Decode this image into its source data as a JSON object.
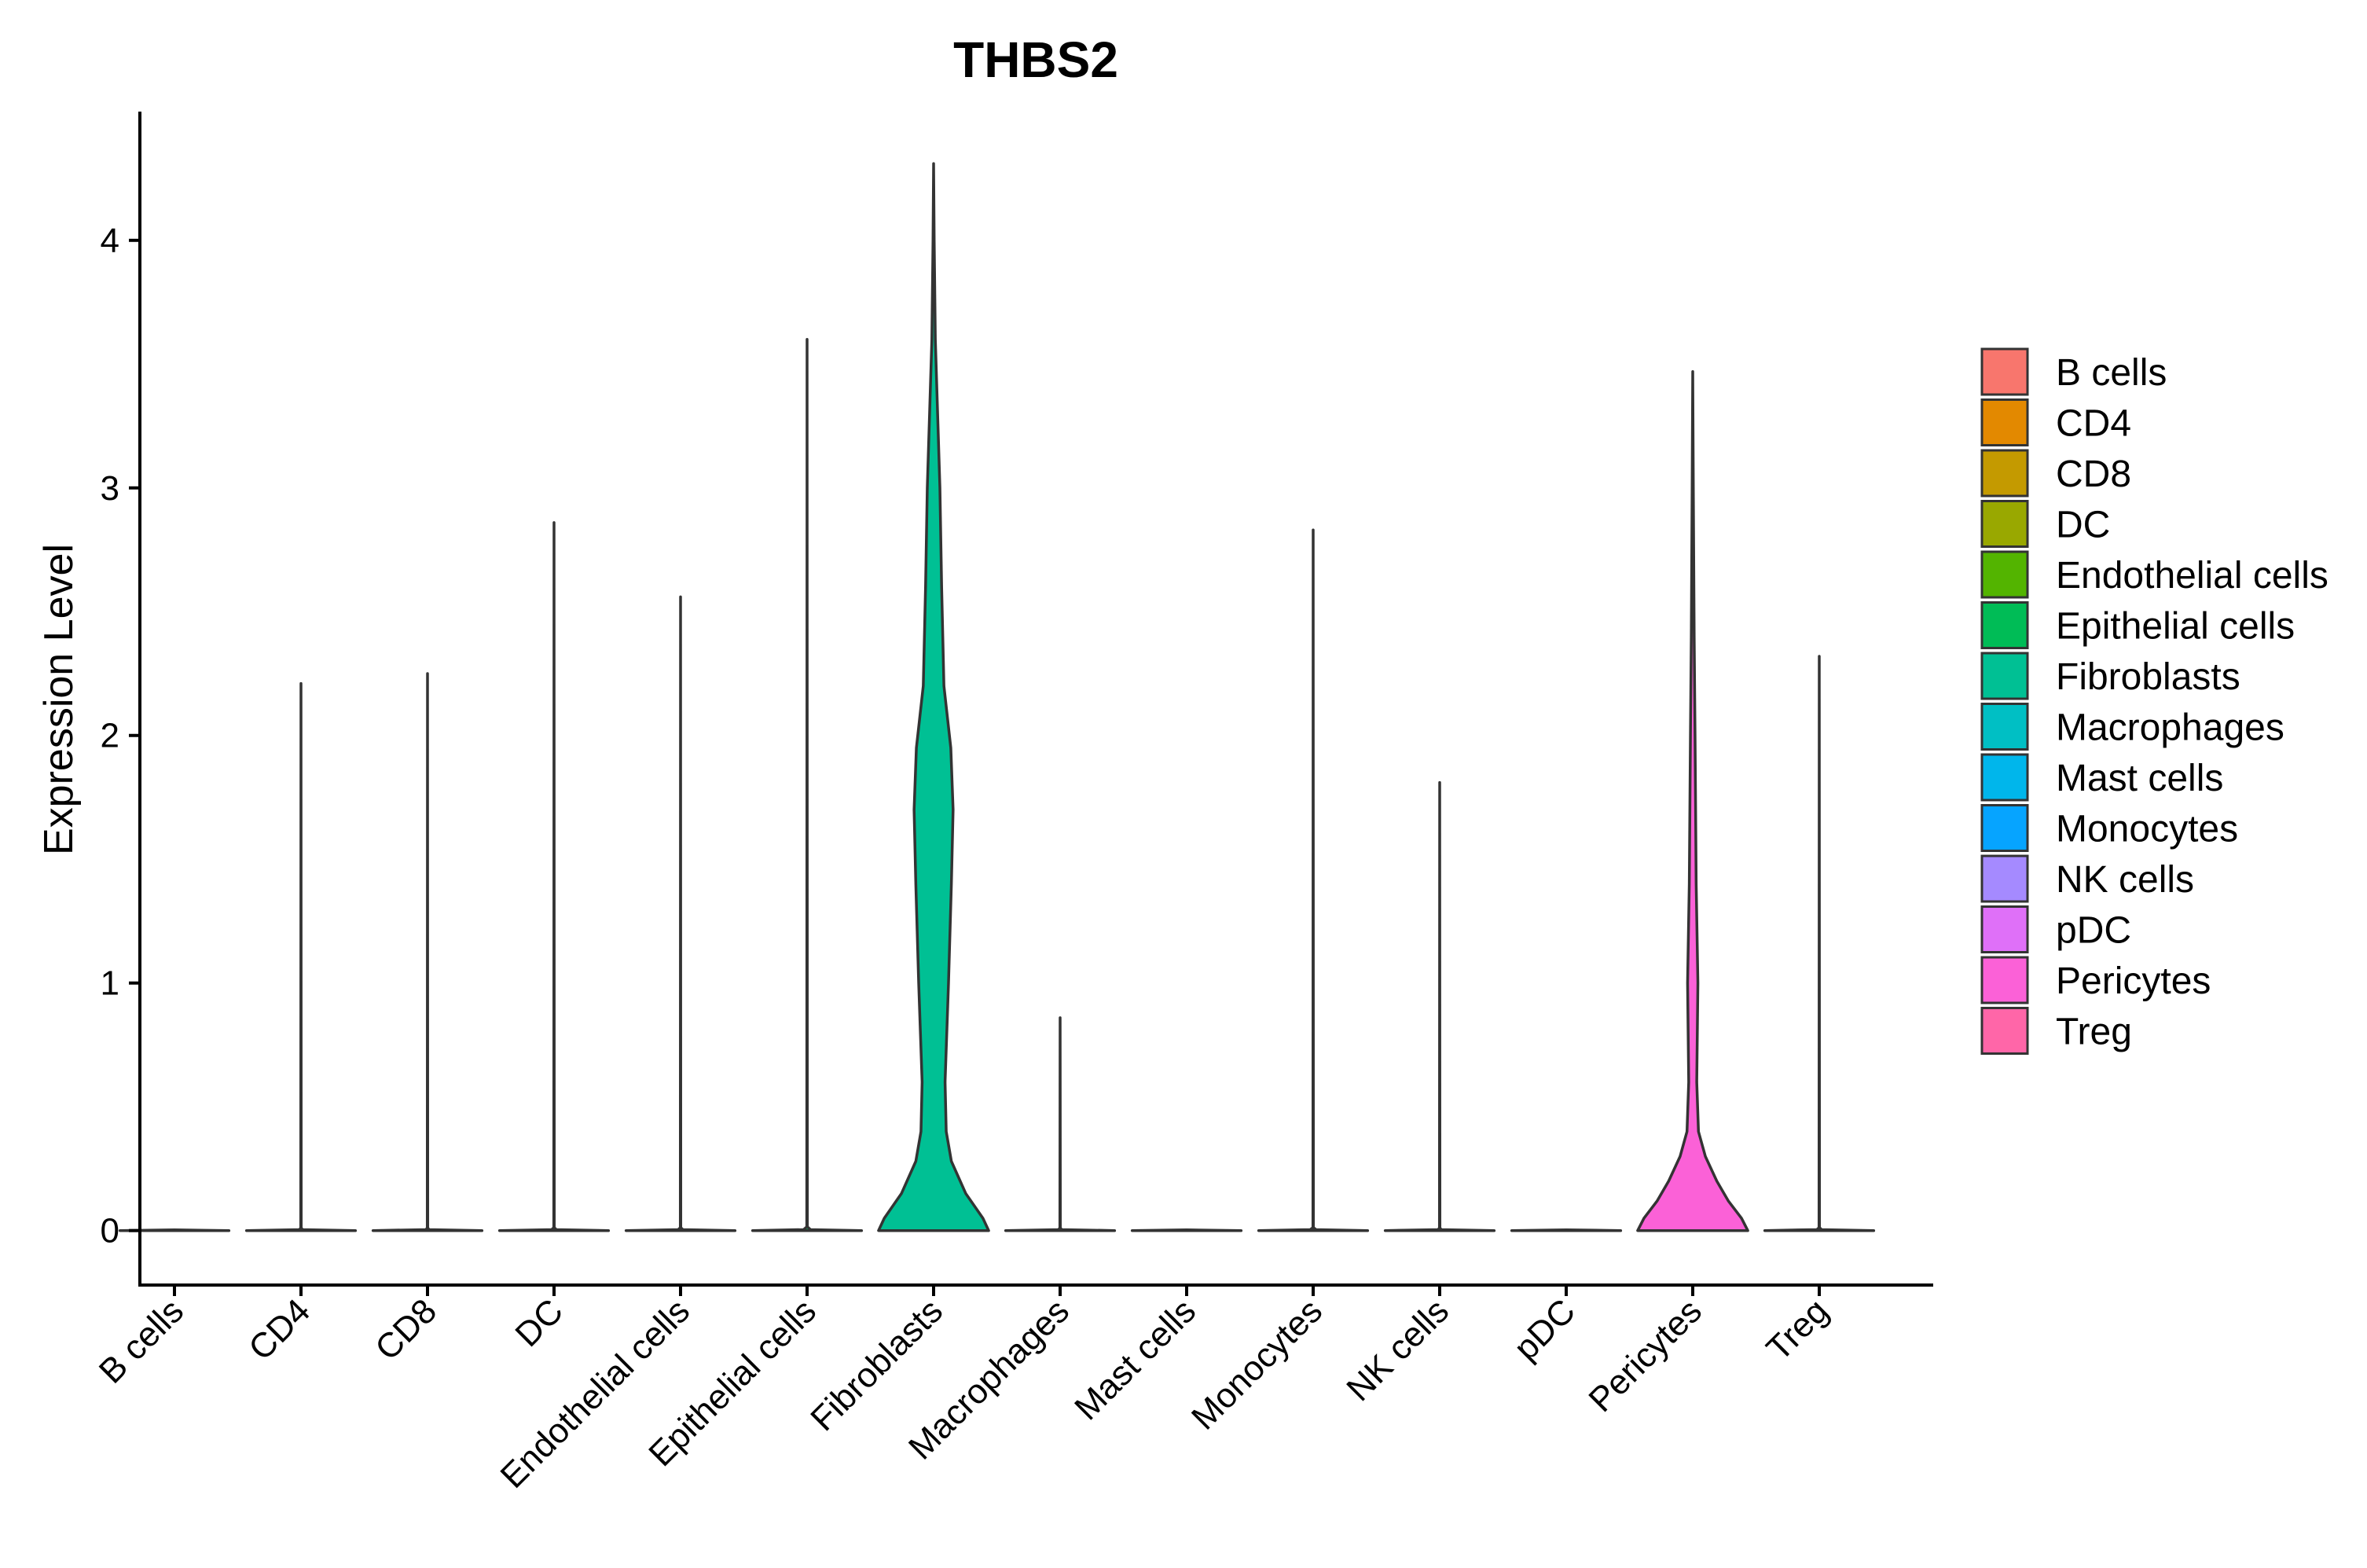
{
  "chart_data": {
    "type": "violin",
    "title": "THBS2",
    "xlabel": "",
    "ylabel": "Expression Level",
    "ylim": [
      -0.22,
      4.52
    ],
    "yticks": [
      0,
      1,
      2,
      3,
      4
    ],
    "grid": false,
    "legend": {
      "position": "right",
      "entries": [
        {
          "label": "B cells",
          "color": "#F8766D"
        },
        {
          "label": "CD4",
          "color": "#E38900"
        },
        {
          "label": "CD8",
          "color": "#C49A00"
        },
        {
          "label": "DC",
          "color": "#99A800"
        },
        {
          "label": "Endothelial cells",
          "color": "#53B400"
        },
        {
          "label": "Epithelial cells",
          "color": "#00BC56"
        },
        {
          "label": "Fibroblasts",
          "color": "#00C094"
        },
        {
          "label": "Macrophages",
          "color": "#00BFC4"
        },
        {
          "label": "Mast cells",
          "color": "#00B6EB"
        },
        {
          "label": "Monocytes",
          "color": "#06A4FF"
        },
        {
          "label": "NK cells",
          "color": "#A58AFF"
        },
        {
          "label": "pDC",
          "color": "#DF70F8"
        },
        {
          "label": "Pericytes",
          "color": "#FB61D7"
        },
        {
          "label": "Treg",
          "color": "#FF66A8"
        }
      ]
    },
    "categories": [
      "B cells",
      "CD4",
      "CD8",
      "DC",
      "Endothelial cells",
      "Epithelial cells",
      "Fibroblasts",
      "Macrophages",
      "Mast cells",
      "Monocytes",
      "NK cells",
      "pDC",
      "Pericytes",
      "Treg"
    ],
    "series": [
      {
        "name": "B cells",
        "color": "#F8766D",
        "max": 0.0,
        "profile": [
          [
            0,
            0.95
          ],
          [
            0.003,
            0.0
          ]
        ]
      },
      {
        "name": "CD4",
        "color": "#E38900",
        "max": 2.21,
        "profile": [
          [
            0,
            0.95
          ],
          [
            0.004,
            0.03
          ],
          [
            0.01,
            0.004
          ],
          [
            2.21,
            0.0
          ]
        ]
      },
      {
        "name": "CD8",
        "color": "#C49A00",
        "max": 2.25,
        "profile": [
          [
            0,
            0.95
          ],
          [
            0.004,
            0.03
          ],
          [
            0.01,
            0.004
          ],
          [
            2.25,
            0.0
          ]
        ]
      },
      {
        "name": "DC",
        "color": "#99A800",
        "max": 2.86,
        "profile": [
          [
            0,
            0.95
          ],
          [
            0.004,
            0.04
          ],
          [
            0.012,
            0.004
          ],
          [
            2.86,
            0.0
          ]
        ]
      },
      {
        "name": "Endothelial cells",
        "color": "#53B400",
        "max": 2.56,
        "profile": [
          [
            0,
            0.95
          ],
          [
            0.004,
            0.04
          ],
          [
            0.012,
            0.004
          ],
          [
            2.56,
            0.0
          ]
        ]
      },
      {
        "name": "Epithelial cells",
        "color": "#00BC56",
        "max": 3.6,
        "profile": [
          [
            0,
            0.95
          ],
          [
            0.004,
            0.06
          ],
          [
            0.015,
            0.005
          ],
          [
            3.6,
            0.0
          ]
        ]
      },
      {
        "name": "Fibroblasts",
        "color": "#00C094",
        "max": 4.31,
        "profile": [
          [
            0,
            0.96
          ],
          [
            0.05,
            0.86
          ],
          [
            0.15,
            0.56
          ],
          [
            0.28,
            0.31
          ],
          [
            0.4,
            0.22
          ],
          [
            0.6,
            0.2
          ],
          [
            1.0,
            0.26
          ],
          [
            1.4,
            0.31
          ],
          [
            1.7,
            0.34
          ],
          [
            1.95,
            0.3
          ],
          [
            2.2,
            0.18
          ],
          [
            2.6,
            0.14
          ],
          [
            3.0,
            0.11
          ],
          [
            3.3,
            0.07
          ],
          [
            3.6,
            0.03
          ],
          [
            4.0,
            0.01
          ],
          [
            4.31,
            0.0
          ]
        ]
      },
      {
        "name": "Macrophages",
        "color": "#00BFC4",
        "max": 0.86,
        "profile": [
          [
            0,
            0.95
          ],
          [
            0.004,
            0.03
          ],
          [
            0.01,
            0.004
          ],
          [
            0.86,
            0.0
          ]
        ]
      },
      {
        "name": "Mast cells",
        "color": "#00B6EB",
        "max": 0.0,
        "profile": [
          [
            0,
            0.95
          ],
          [
            0.003,
            0.0
          ]
        ]
      },
      {
        "name": "Monocytes",
        "color": "#06A4FF",
        "max": 2.83,
        "profile": [
          [
            0,
            0.95
          ],
          [
            0.004,
            0.05
          ],
          [
            0.012,
            0.004
          ],
          [
            2.83,
            0.0
          ]
        ]
      },
      {
        "name": "NK cells",
        "color": "#A58AFF",
        "max": 1.81,
        "profile": [
          [
            0,
            0.95
          ],
          [
            0.004,
            0.03
          ],
          [
            0.01,
            0.004
          ],
          [
            1.81,
            0.0
          ]
        ]
      },
      {
        "name": "pDC",
        "color": "#DF70F8",
        "max": 0.0,
        "profile": [
          [
            0,
            0.95
          ],
          [
            0.003,
            0.0
          ]
        ]
      },
      {
        "name": "Pericytes",
        "color": "#FB61D7",
        "max": 3.47,
        "profile": [
          [
            0,
            0.96
          ],
          [
            0.05,
            0.85
          ],
          [
            0.12,
            0.62
          ],
          [
            0.2,
            0.42
          ],
          [
            0.3,
            0.22
          ],
          [
            0.4,
            0.1
          ],
          [
            0.6,
            0.07
          ],
          [
            1.0,
            0.09
          ],
          [
            1.4,
            0.06
          ],
          [
            1.7,
            0.05
          ],
          [
            2.0,
            0.04
          ],
          [
            2.4,
            0.025
          ],
          [
            3.0,
            0.01
          ],
          [
            3.47,
            0.0
          ]
        ]
      },
      {
        "name": "Treg",
        "color": "#FF66A8",
        "max": 2.32,
        "profile": [
          [
            0,
            0.95
          ],
          [
            0.004,
            0.04
          ],
          [
            0.012,
            0.004
          ],
          [
            2.32,
            0.0
          ]
        ]
      }
    ]
  }
}
